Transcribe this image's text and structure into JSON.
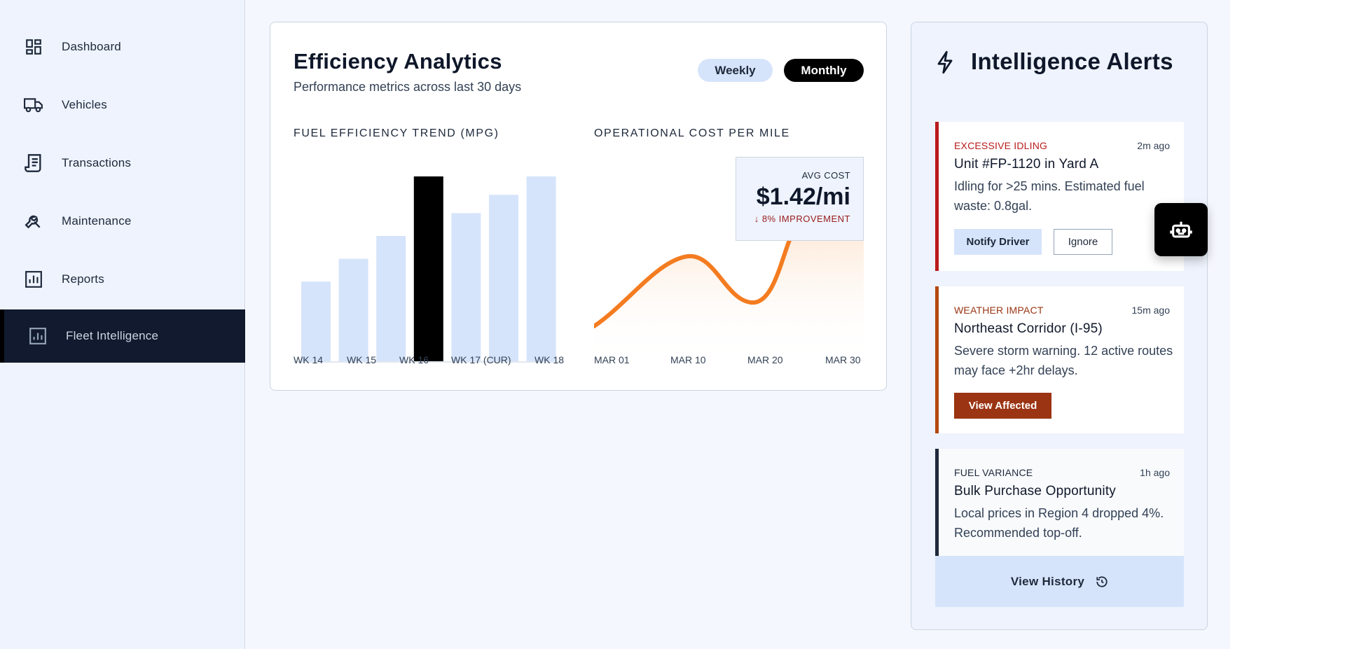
{
  "sidebar": {
    "items": [
      {
        "label": "Dashboard",
        "icon": "dashboard-icon"
      },
      {
        "label": "Vehicles",
        "icon": "truck-icon"
      },
      {
        "label": "Transactions",
        "icon": "receipt-icon"
      },
      {
        "label": "Maintenance",
        "icon": "wrench-icon"
      },
      {
        "label": "Reports",
        "icon": "bar-chart-icon"
      },
      {
        "label": "Fleet Intelligence",
        "icon": "analytics-icon",
        "active": true
      }
    ]
  },
  "analytics": {
    "title": "Efficiency Analytics",
    "subtitle": "Performance metrics across last 30 days",
    "toggle_weekly": "Weekly",
    "toggle_monthly": "Monthly",
    "selected_period": "Monthly"
  },
  "avg_cost": {
    "label": "AVG COST",
    "value": "$1.42/mi",
    "delta": "↓ 8% IMPROVEMENT"
  },
  "chart_data": [
    {
      "type": "bar",
      "title": "FUEL EFFICIENCY TREND (MPG)",
      "categories": [
        "",
        "WK 14",
        "WK 15",
        "WK 16",
        "WK 17 (CUR)",
        "WK 18",
        ""
      ],
      "values": [
        39,
        44,
        49,
        63,
        54,
        58,
        73
      ],
      "tick_labels": [
        "WK 14",
        "WK 15",
        "WK 16",
        "WK 17 (CUR)",
        "WK 18"
      ],
      "highlight_index": 3,
      "colors": {
        "bar": "#d6e4fb",
        "highlight": "#000000"
      },
      "ylim": [
        0,
        100
      ]
    },
    {
      "type": "area",
      "title": "OPERATIONAL COST PER MILE",
      "x": [
        "MAR 01",
        "MAR 10",
        "MAR 20",
        "MAR 30"
      ],
      "colors": {
        "line": "#f47c20",
        "fill": "#fff1e6"
      }
    }
  ],
  "alerts_panel": {
    "title": "Intelligence Alerts",
    "icon": "lightning-icon",
    "alerts": [
      {
        "kind": "EXCESSIVE IDLING",
        "time": "2m ago",
        "head": "Unit #FP-1120 in Yard A",
        "body": "Idling for >25 mins. Estimated fuel waste: 0.8gal.",
        "primary": "Notify Driver",
        "secondary": "Ignore"
      },
      {
        "kind": "WEATHER IMPACT",
        "time": "15m ago",
        "head": "Northeast Corridor (I-95)",
        "body": "Severe storm warning. 12 active routes may face +2hr delays.",
        "primary": "View Affected"
      },
      {
        "kind": "FUEL VARIANCE",
        "time": "1h ago",
        "head": "Bulk Purchase Opportunity",
        "body": "Local prices in Region 4 dropped 4%. Recommended top-off."
      }
    ],
    "history_label": "View History",
    "history_icon": "history-icon"
  },
  "assistant": {
    "icon": "robot-icon"
  }
}
